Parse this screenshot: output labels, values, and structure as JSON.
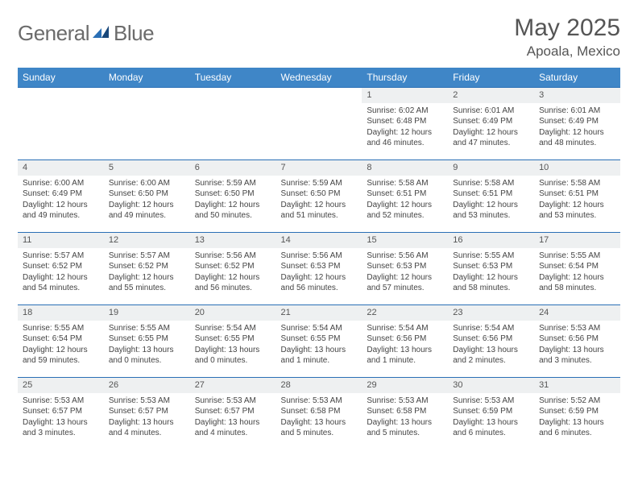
{
  "brand": {
    "g": "General",
    "b": "Blue"
  },
  "title": "May 2025",
  "location": "Apoala, Mexico",
  "colors": {
    "headerBg": "#3f86c7",
    "border": "#2a6fb5",
    "dayBg": "#eef0f1",
    "brandGray": "#6b6b6b",
    "brandBlue": "#2a6fb5"
  },
  "dayHeaders": [
    "Sunday",
    "Monday",
    "Tuesday",
    "Wednesday",
    "Thursday",
    "Friday",
    "Saturday"
  ],
  "weeks": [
    [
      {
        "n": "",
        "sr": "",
        "ss": "",
        "d1": "",
        "d2": ""
      },
      {
        "n": "",
        "sr": "",
        "ss": "",
        "d1": "",
        "d2": ""
      },
      {
        "n": "",
        "sr": "",
        "ss": "",
        "d1": "",
        "d2": ""
      },
      {
        "n": "",
        "sr": "",
        "ss": "",
        "d1": "",
        "d2": ""
      },
      {
        "n": "1",
        "sr": "Sunrise: 6:02 AM",
        "ss": "Sunset: 6:48 PM",
        "d1": "Daylight: 12 hours",
        "d2": "and 46 minutes."
      },
      {
        "n": "2",
        "sr": "Sunrise: 6:01 AM",
        "ss": "Sunset: 6:49 PM",
        "d1": "Daylight: 12 hours",
        "d2": "and 47 minutes."
      },
      {
        "n": "3",
        "sr": "Sunrise: 6:01 AM",
        "ss": "Sunset: 6:49 PM",
        "d1": "Daylight: 12 hours",
        "d2": "and 48 minutes."
      }
    ],
    [
      {
        "n": "4",
        "sr": "Sunrise: 6:00 AM",
        "ss": "Sunset: 6:49 PM",
        "d1": "Daylight: 12 hours",
        "d2": "and 49 minutes."
      },
      {
        "n": "5",
        "sr": "Sunrise: 6:00 AM",
        "ss": "Sunset: 6:50 PM",
        "d1": "Daylight: 12 hours",
        "d2": "and 49 minutes."
      },
      {
        "n": "6",
        "sr": "Sunrise: 5:59 AM",
        "ss": "Sunset: 6:50 PM",
        "d1": "Daylight: 12 hours",
        "d2": "and 50 minutes."
      },
      {
        "n": "7",
        "sr": "Sunrise: 5:59 AM",
        "ss": "Sunset: 6:50 PM",
        "d1": "Daylight: 12 hours",
        "d2": "and 51 minutes."
      },
      {
        "n": "8",
        "sr": "Sunrise: 5:58 AM",
        "ss": "Sunset: 6:51 PM",
        "d1": "Daylight: 12 hours",
        "d2": "and 52 minutes."
      },
      {
        "n": "9",
        "sr": "Sunrise: 5:58 AM",
        "ss": "Sunset: 6:51 PM",
        "d1": "Daylight: 12 hours",
        "d2": "and 53 minutes."
      },
      {
        "n": "10",
        "sr": "Sunrise: 5:58 AM",
        "ss": "Sunset: 6:51 PM",
        "d1": "Daylight: 12 hours",
        "d2": "and 53 minutes."
      }
    ],
    [
      {
        "n": "11",
        "sr": "Sunrise: 5:57 AM",
        "ss": "Sunset: 6:52 PM",
        "d1": "Daylight: 12 hours",
        "d2": "and 54 minutes."
      },
      {
        "n": "12",
        "sr": "Sunrise: 5:57 AM",
        "ss": "Sunset: 6:52 PM",
        "d1": "Daylight: 12 hours",
        "d2": "and 55 minutes."
      },
      {
        "n": "13",
        "sr": "Sunrise: 5:56 AM",
        "ss": "Sunset: 6:52 PM",
        "d1": "Daylight: 12 hours",
        "d2": "and 56 minutes."
      },
      {
        "n": "14",
        "sr": "Sunrise: 5:56 AM",
        "ss": "Sunset: 6:53 PM",
        "d1": "Daylight: 12 hours",
        "d2": "and 56 minutes."
      },
      {
        "n": "15",
        "sr": "Sunrise: 5:56 AM",
        "ss": "Sunset: 6:53 PM",
        "d1": "Daylight: 12 hours",
        "d2": "and 57 minutes."
      },
      {
        "n": "16",
        "sr": "Sunrise: 5:55 AM",
        "ss": "Sunset: 6:53 PM",
        "d1": "Daylight: 12 hours",
        "d2": "and 58 minutes."
      },
      {
        "n": "17",
        "sr": "Sunrise: 5:55 AM",
        "ss": "Sunset: 6:54 PM",
        "d1": "Daylight: 12 hours",
        "d2": "and 58 minutes."
      }
    ],
    [
      {
        "n": "18",
        "sr": "Sunrise: 5:55 AM",
        "ss": "Sunset: 6:54 PM",
        "d1": "Daylight: 12 hours",
        "d2": "and 59 minutes."
      },
      {
        "n": "19",
        "sr": "Sunrise: 5:55 AM",
        "ss": "Sunset: 6:55 PM",
        "d1": "Daylight: 13 hours",
        "d2": "and 0 minutes."
      },
      {
        "n": "20",
        "sr": "Sunrise: 5:54 AM",
        "ss": "Sunset: 6:55 PM",
        "d1": "Daylight: 13 hours",
        "d2": "and 0 minutes."
      },
      {
        "n": "21",
        "sr": "Sunrise: 5:54 AM",
        "ss": "Sunset: 6:55 PM",
        "d1": "Daylight: 13 hours",
        "d2": "and 1 minute."
      },
      {
        "n": "22",
        "sr": "Sunrise: 5:54 AM",
        "ss": "Sunset: 6:56 PM",
        "d1": "Daylight: 13 hours",
        "d2": "and 1 minute."
      },
      {
        "n": "23",
        "sr": "Sunrise: 5:54 AM",
        "ss": "Sunset: 6:56 PM",
        "d1": "Daylight: 13 hours",
        "d2": "and 2 minutes."
      },
      {
        "n": "24",
        "sr": "Sunrise: 5:53 AM",
        "ss": "Sunset: 6:56 PM",
        "d1": "Daylight: 13 hours",
        "d2": "and 3 minutes."
      }
    ],
    [
      {
        "n": "25",
        "sr": "Sunrise: 5:53 AM",
        "ss": "Sunset: 6:57 PM",
        "d1": "Daylight: 13 hours",
        "d2": "and 3 minutes."
      },
      {
        "n": "26",
        "sr": "Sunrise: 5:53 AM",
        "ss": "Sunset: 6:57 PM",
        "d1": "Daylight: 13 hours",
        "d2": "and 4 minutes."
      },
      {
        "n": "27",
        "sr": "Sunrise: 5:53 AM",
        "ss": "Sunset: 6:57 PM",
        "d1": "Daylight: 13 hours",
        "d2": "and 4 minutes."
      },
      {
        "n": "28",
        "sr": "Sunrise: 5:53 AM",
        "ss": "Sunset: 6:58 PM",
        "d1": "Daylight: 13 hours",
        "d2": "and 5 minutes."
      },
      {
        "n": "29",
        "sr": "Sunrise: 5:53 AM",
        "ss": "Sunset: 6:58 PM",
        "d1": "Daylight: 13 hours",
        "d2": "and 5 minutes."
      },
      {
        "n": "30",
        "sr": "Sunrise: 5:53 AM",
        "ss": "Sunset: 6:59 PM",
        "d1": "Daylight: 13 hours",
        "d2": "and 6 minutes."
      },
      {
        "n": "31",
        "sr": "Sunrise: 5:52 AM",
        "ss": "Sunset: 6:59 PM",
        "d1": "Daylight: 13 hours",
        "d2": "and 6 minutes."
      }
    ]
  ]
}
